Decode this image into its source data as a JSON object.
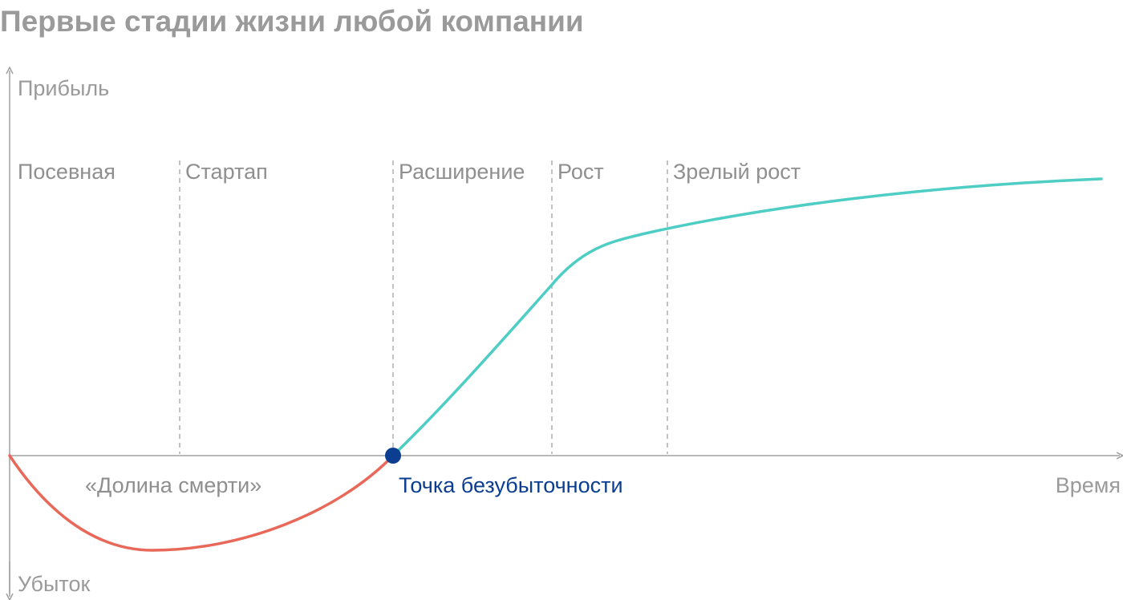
{
  "title": "Первые стадии жизни любой компании",
  "axes": {
    "y_top_label": "Прибыль",
    "y_bottom_label": "Убыток",
    "x_label": "Время"
  },
  "stages": [
    {
      "label": "Посевная"
    },
    {
      "label": "Стартап"
    },
    {
      "label": "Расширение"
    },
    {
      "label": "Рост"
    },
    {
      "label": "Зрелый рост"
    }
  ],
  "annotations": {
    "valley_of_death": "«Долина смерти»",
    "break_even_point": "Точка безубыточности"
  },
  "colors": {
    "loss_curve": "#e8695a",
    "profit_curve": "#4ecdc4",
    "break_even_marker": "#0b3d91",
    "axis": "#a0a0a0",
    "divider": "#b0b0b0",
    "title": "#9a9a9a"
  }
}
